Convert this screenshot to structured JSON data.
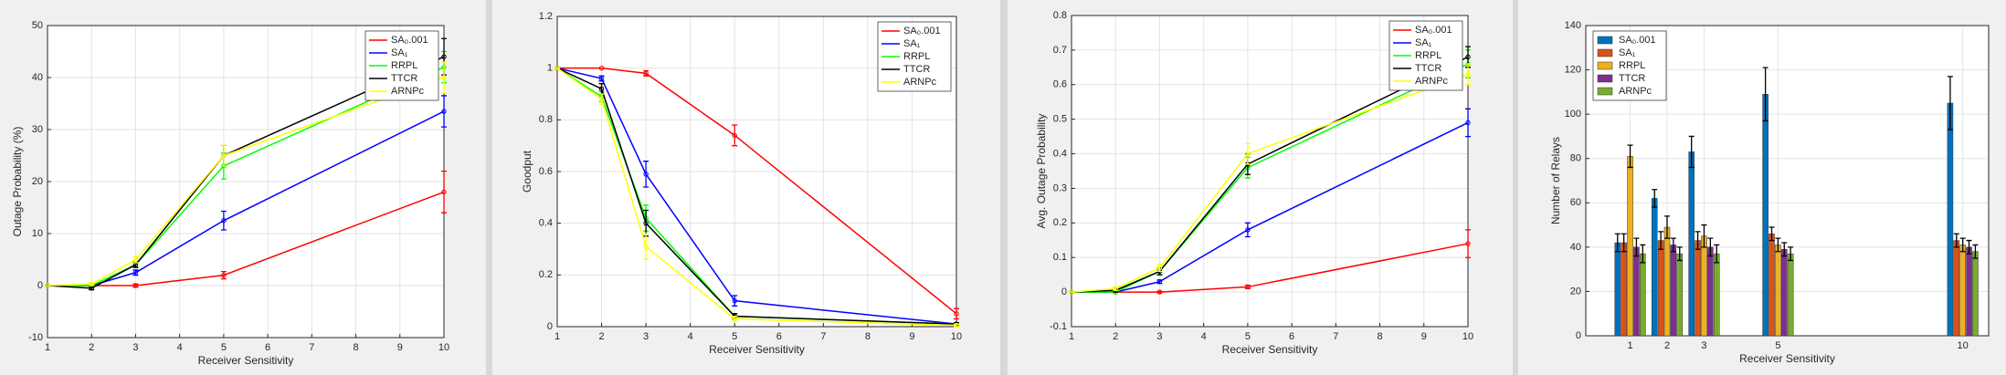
{
  "chart_data": [
    {
      "type": "line",
      "xlabel": "Receiver Sensitivity",
      "ylabel": "Outage Probability (%)",
      "x": [
        1,
        2,
        3,
        5,
        10
      ],
      "xlim": [
        1,
        10
      ],
      "xticks": [
        1,
        2,
        3,
        4,
        5,
        6,
        7,
        8,
        9,
        10
      ],
      "ylim": [
        -10,
        50
      ],
      "yticks": [
        -10,
        0,
        10,
        20,
        30,
        40,
        50
      ],
      "grid": true,
      "legend": "northeast",
      "series": [
        {
          "name": "SA₀.001",
          "color": "#ff0000",
          "values": [
            0,
            0,
            0,
            2,
            18
          ],
          "errors": [
            0,
            0,
            0.3,
            0.7,
            4
          ]
        },
        {
          "name": "SA₁",
          "color": "#0000ff",
          "values": [
            0,
            0,
            2.5,
            12.5,
            33.5
          ],
          "errors": [
            0,
            0,
            0.5,
            1.8,
            3
          ]
        },
        {
          "name": "RRPL",
          "color": "#00ff00",
          "values": [
            0,
            0,
            4,
            23,
            42
          ],
          "errors": [
            0,
            0,
            0.5,
            2.5,
            3
          ]
        },
        {
          "name": "TTCR",
          "color": "#000000",
          "values": [
            0,
            -0.5,
            4,
            25,
            44
          ],
          "errors": [
            0,
            0.3,
            0.5,
            2,
            3.5
          ]
        },
        {
          "name": "ARNPc",
          "color": "#ffff00",
          "values": [
            0,
            0.3,
            5,
            25,
            40
          ],
          "errors": [
            0,
            0.3,
            0.6,
            2,
            3
          ]
        }
      ]
    },
    {
      "type": "line",
      "xlabel": "Receiver Sensitivity",
      "ylabel": "Goodput",
      "x": [
        1,
        2,
        3,
        5,
        10
      ],
      "xlim": [
        1,
        10
      ],
      "xticks": [
        1,
        2,
        3,
        4,
        5,
        6,
        7,
        8,
        9,
        10
      ],
      "ylim": [
        0,
        1.2
      ],
      "yticks": [
        0,
        0.2,
        0.4,
        0.6,
        0.8,
        1,
        1.2
      ],
      "grid": true,
      "legend": "northeast",
      "series": [
        {
          "name": "SA₀.001",
          "color": "#ff0000",
          "values": [
            1,
            1,
            0.98,
            0.74,
            0.05
          ],
          "errors": [
            0,
            0,
            0.01,
            0.04,
            0.02
          ]
        },
        {
          "name": "SA₁",
          "color": "#0000ff",
          "values": [
            1,
            0.96,
            0.59,
            0.1,
            0.01
          ],
          "errors": [
            0,
            0.01,
            0.05,
            0.02,
            0.005
          ]
        },
        {
          "name": "RRPL",
          "color": "#00ff00",
          "values": [
            1,
            0.89,
            0.42,
            0.04,
            0.01
          ],
          "errors": [
            0,
            0.02,
            0.05,
            0.01,
            0.005
          ]
        },
        {
          "name": "TTCR",
          "color": "#000000",
          "values": [
            1,
            0.92,
            0.4,
            0.04,
            0.01
          ],
          "errors": [
            0,
            0.02,
            0.05,
            0.01,
            0.005
          ]
        },
        {
          "name": "ARNPc",
          "color": "#ffff00",
          "values": [
            1,
            0.88,
            0.31,
            0.03,
            0.005
          ],
          "errors": [
            0,
            0.02,
            0.05,
            0.01,
            0.005
          ]
        }
      ]
    },
    {
      "type": "line",
      "xlabel": "Receiver Sensitivity",
      "ylabel": "Avg. Outage Probability",
      "x": [
        1,
        2,
        3,
        5,
        10
      ],
      "xlim": [
        1,
        10
      ],
      "xticks": [
        1,
        2,
        3,
        4,
        5,
        6,
        7,
        8,
        9,
        10
      ],
      "ylim": [
        -0.1,
        0.8
      ],
      "yticks": [
        -0.1,
        0,
        0.1,
        0.2,
        0.3,
        0.4,
        0.5,
        0.6,
        0.7,
        0.8
      ],
      "grid": true,
      "legend": "northeast",
      "series": [
        {
          "name": "SA₀.001",
          "color": "#ff0000",
          "values": [
            0,
            0,
            0,
            0.015,
            0.14
          ],
          "errors": [
            0,
            0,
            0.002,
            0.005,
            0.04
          ]
        },
        {
          "name": "SA₁",
          "color": "#0000ff",
          "values": [
            0,
            0,
            0.03,
            0.18,
            0.49
          ],
          "errors": [
            0,
            0,
            0.005,
            0.02,
            0.04
          ]
        },
        {
          "name": "RRPL",
          "color": "#00ff00",
          "values": [
            0,
            0,
            0.06,
            0.36,
            0.66
          ],
          "errors": [
            0,
            0,
            0.01,
            0.03,
            0.04
          ]
        },
        {
          "name": "TTCR",
          "color": "#000000",
          "values": [
            0,
            0.005,
            0.06,
            0.37,
            0.68
          ],
          "errors": [
            0,
            0.005,
            0.01,
            0.03,
            0.03
          ]
        },
        {
          "name": "ARNPc",
          "color": "#ffff00",
          "values": [
            0,
            0.01,
            0.07,
            0.4,
            0.63
          ],
          "errors": [
            0,
            0.005,
            0.01,
            0.03,
            0.03
          ]
        }
      ]
    },
    {
      "type": "bar",
      "xlabel": "Receiver Sensitivity",
      "ylabel": "Number of Relays",
      "x": [
        1,
        2,
        3,
        5,
        10
      ],
      "xlim": [
        -0.2,
        10.7
      ],
      "xticks": [
        1,
        2,
        3,
        5,
        10
      ],
      "ylim": [
        0,
        140
      ],
      "yticks": [
        0,
        20,
        40,
        60,
        80,
        100,
        120,
        140
      ],
      "grid": true,
      "legend": "northwest",
      "series": [
        {
          "name": "SA₀.001",
          "color": "#0072bd",
          "values": [
            42,
            62,
            83,
            109,
            105
          ],
          "errors": [
            4,
            4,
            7,
            12,
            12
          ]
        },
        {
          "name": "SA₁",
          "color": "#d95319",
          "values": [
            42,
            43,
            43,
            46,
            43
          ],
          "errors": [
            4,
            4,
            4,
            3,
            3
          ]
        },
        {
          "name": "RRPL",
          "color": "#edb120",
          "values": [
            81,
            49,
            45,
            41,
            41
          ],
          "errors": [
            5,
            5,
            5,
            3,
            3
          ]
        },
        {
          "name": "TTCR",
          "color": "#7e2f8e",
          "values": [
            40,
            41,
            40,
            39,
            40
          ],
          "errors": [
            4,
            3,
            4,
            3,
            3
          ]
        },
        {
          "name": "ARNPc",
          "color": "#77ac30",
          "values": [
            37,
            37,
            37,
            37,
            38
          ],
          "errors": [
            4,
            3,
            4,
            3,
            3
          ]
        }
      ]
    }
  ]
}
